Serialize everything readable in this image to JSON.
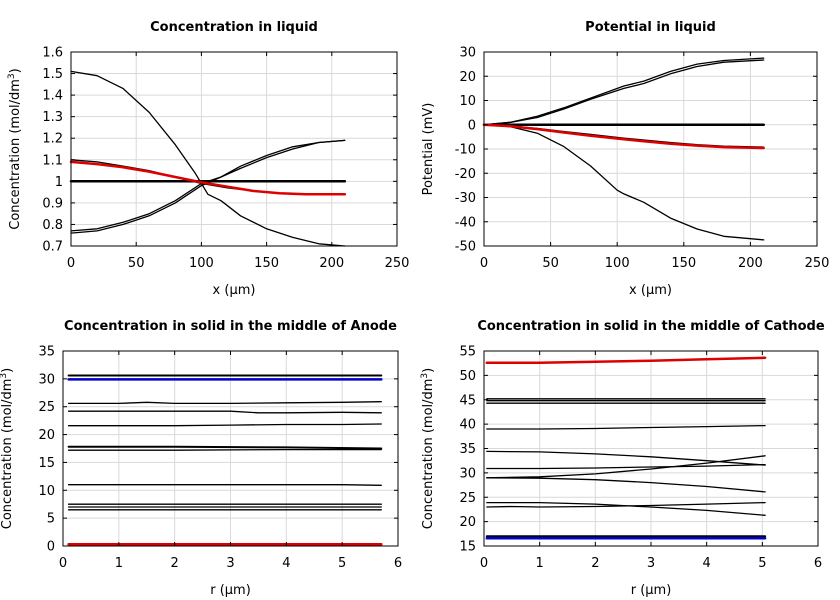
{
  "chart_data": [
    {
      "type": "line",
      "title": "Concentration in liquid",
      "xlabel": "x (µm)",
      "ylabel": "Concentration (mol/dm",
      "ylabel_sup": "3",
      "ylabel_end": ")",
      "xlim": [
        0,
        250
      ],
      "ylim": [
        0.7,
        1.6
      ],
      "xticks": [
        "0",
        "50",
        "100",
        "150",
        "200",
        "250"
      ],
      "yticks": [
        "0.7",
        "0.8",
        "0.9",
        "1",
        "1.1",
        "1.2",
        "1.3",
        "1.4",
        "1.5",
        "1.6"
      ],
      "grid": true,
      "series": [
        {
          "name": "initial",
          "color": "#000000",
          "width": 2.5,
          "x": [
            0,
            210
          ],
          "values": [
            1.0,
            1.0
          ]
        },
        {
          "name": "t1",
          "color": "#000000",
          "width": 1.3,
          "x": [
            0,
            20,
            40,
            60,
            80,
            95,
            105,
            115,
            130,
            150,
            170,
            190,
            210
          ],
          "values": [
            1.51,
            1.49,
            1.43,
            1.32,
            1.17,
            1.04,
            0.94,
            0.91,
            0.84,
            0.78,
            0.74,
            0.71,
            0.7
          ]
        },
        {
          "name": "t2",
          "color": "#000000",
          "width": 1.3,
          "x": [
            0,
            20,
            40,
            60,
            80,
            100,
            115,
            130,
            150,
            170,
            190,
            210
          ],
          "values": [
            0.77,
            0.78,
            0.81,
            0.85,
            0.91,
            0.99,
            1.02,
            1.07,
            1.12,
            1.16,
            1.18,
            1.19
          ]
        },
        {
          "name": "t3",
          "color": "#000000",
          "width": 1.3,
          "x": [
            0,
            20,
            40,
            60,
            80,
            100,
            115,
            130,
            150,
            170,
            190,
            210
          ],
          "values": [
            0.76,
            0.77,
            0.8,
            0.84,
            0.9,
            0.98,
            1.02,
            1.06,
            1.11,
            1.15,
            1.18,
            1.19
          ]
        },
        {
          "name": "t4",
          "color": "#000000",
          "width": 1.3,
          "x": [
            0,
            20,
            40,
            60,
            80,
            100,
            120,
            140,
            160,
            180,
            210
          ],
          "values": [
            1.1,
            1.09,
            1.07,
            1.05,
            1.02,
            0.99,
            0.97,
            0.955,
            0.945,
            0.94,
            0.94
          ]
        },
        {
          "name": "final",
          "color": "#dd0000",
          "width": 2.5,
          "x": [
            0,
            20,
            40,
            60,
            80,
            100,
            120,
            140,
            160,
            180,
            210
          ],
          "values": [
            1.09,
            1.08,
            1.065,
            1.045,
            1.02,
            0.995,
            0.975,
            0.955,
            0.945,
            0.94,
            0.94
          ]
        }
      ]
    },
    {
      "type": "line",
      "title": "Potential in liquid",
      "xlabel": "x (µm)",
      "ylabel": "Potential (mV)",
      "ylabel_sup": "",
      "ylabel_end": "",
      "xlim": [
        0,
        250
      ],
      "ylim": [
        -50,
        30
      ],
      "xticks": [
        "0",
        "50",
        "100",
        "150",
        "200",
        "250"
      ],
      "yticks": [
        "-50",
        "-40",
        "-30",
        "-20",
        "-10",
        "0",
        "10",
        "20",
        "30"
      ],
      "grid": true,
      "series": [
        {
          "name": "initial",
          "color": "#000000",
          "width": 2.5,
          "x": [
            0,
            210
          ],
          "values": [
            0,
            0
          ]
        },
        {
          "name": "t1",
          "color": "#000000",
          "width": 1.3,
          "x": [
            0,
            20,
            40,
            60,
            80,
            100,
            105,
            120,
            140,
            160,
            180,
            210
          ],
          "values": [
            0,
            -0.8,
            -3.5,
            -9,
            -17,
            -27,
            -28.5,
            -32,
            -38.5,
            -43,
            -46,
            -47.5
          ]
        },
        {
          "name": "t2",
          "color": "#000000",
          "width": 1.3,
          "x": [
            0,
            20,
            40,
            60,
            80,
            105,
            120,
            140,
            160,
            180,
            210
          ],
          "values": [
            0,
            1,
            3.5,
            7,
            11,
            16,
            18,
            22,
            25,
            26.5,
            27.5
          ]
        },
        {
          "name": "t3",
          "color": "#000000",
          "width": 1.3,
          "x": [
            0,
            20,
            40,
            60,
            80,
            105,
            120,
            140,
            160,
            180,
            210
          ],
          "values": [
            0,
            1,
            3,
            6.5,
            10.5,
            15,
            17,
            21,
            24,
            25.8,
            26.7
          ]
        },
        {
          "name": "t4",
          "color": "#000000",
          "width": 1.3,
          "x": [
            0,
            20,
            40,
            60,
            80,
            105,
            120,
            140,
            160,
            180,
            210
          ],
          "values": [
            0,
            -0.5,
            -1.5,
            -2.8,
            -4,
            -5.5,
            -6.3,
            -7.3,
            -8.2,
            -8.8,
            -9.2
          ]
        },
        {
          "name": "final",
          "color": "#dd0000",
          "width": 2.5,
          "x": [
            0,
            20,
            40,
            60,
            80,
            105,
            120,
            140,
            160,
            180,
            210
          ],
          "values": [
            0,
            -0.6,
            -1.8,
            -3.2,
            -4.5,
            -6,
            -6.8,
            -7.8,
            -8.6,
            -9.2,
            -9.6
          ]
        }
      ]
    },
    {
      "type": "line",
      "title": "Concentration in solid in the middle of Anode",
      "xlabel": "r (µm)",
      "ylabel": "Concentration (mol/dm",
      "ylabel_sup": "3",
      "ylabel_end": ")",
      "xlim": [
        0,
        6
      ],
      "ylim": [
        0,
        35
      ],
      "xticks": [
        "0",
        "1",
        "2",
        "3",
        "4",
        "5",
        "6"
      ],
      "yticks": [
        "0",
        "5",
        "10",
        "15",
        "20",
        "25",
        "30",
        "35"
      ],
      "grid": true,
      "series": [
        {
          "name": "c30a",
          "color": "#000000",
          "width": 2,
          "x": [
            0.1,
            5.7
          ],
          "values": [
            30.6,
            30.6
          ]
        },
        {
          "name": "initial",
          "color": "#0000cc",
          "width": 2.5,
          "x": [
            0.1,
            5.7
          ],
          "values": [
            29.9,
            29.9
          ]
        },
        {
          "name": "c25",
          "color": "#000000",
          "width": 1.3,
          "x": [
            0.1,
            1.0,
            1.5,
            2.0,
            3.0,
            4.0,
            5.0,
            5.7
          ],
          "values": [
            25.6,
            25.6,
            25.8,
            25.6,
            25.6,
            25.7,
            25.8,
            25.9
          ]
        },
        {
          "name": "c24",
          "color": "#000000",
          "width": 1.3,
          "x": [
            0.1,
            1.0,
            2.0,
            3.0,
            3.5,
            4.0,
            5.0,
            5.7
          ],
          "values": [
            24.2,
            24.2,
            24.2,
            24.2,
            23.9,
            23.9,
            24.0,
            23.9
          ]
        },
        {
          "name": "c21",
          "color": "#000000",
          "width": 1.3,
          "x": [
            0.1,
            1.0,
            2.0,
            3.0,
            4.0,
            5.0,
            5.7
          ],
          "values": [
            21.6,
            21.6,
            21.6,
            21.7,
            21.8,
            21.8,
            21.9
          ]
        },
        {
          "name": "c17a",
          "color": "#000000",
          "width": 2,
          "x": [
            0.1,
            2.0,
            4.0,
            5.7
          ],
          "values": [
            17.8,
            17.8,
            17.7,
            17.5
          ]
        },
        {
          "name": "c17b",
          "color": "#000000",
          "width": 1.3,
          "x": [
            0.1,
            2.0,
            4.0,
            5.7
          ],
          "values": [
            17.2,
            17.2,
            17.3,
            17.3
          ]
        },
        {
          "name": "c11",
          "color": "#000000",
          "width": 1.3,
          "x": [
            0.1,
            2.0,
            4.0,
            5.0,
            5.7
          ],
          "values": [
            11.0,
            11.0,
            11.0,
            11.0,
            10.9
          ]
        },
        {
          "name": "c7a",
          "color": "#000000",
          "width": 1.3,
          "x": [
            0.1,
            5.7
          ],
          "values": [
            7.5,
            7.5
          ]
        },
        {
          "name": "c7b",
          "color": "#000000",
          "width": 1.3,
          "x": [
            0.1,
            5.7
          ],
          "values": [
            7.0,
            7.0
          ]
        },
        {
          "name": "c6",
          "color": "#000000",
          "width": 1.3,
          "x": [
            0.1,
            5.7
          ],
          "values": [
            6.5,
            6.5
          ]
        },
        {
          "name": "final",
          "color": "#dd0000",
          "width": 2.5,
          "x": [
            0.1,
            5.7
          ],
          "values": [
            0.3,
            0.3
          ]
        }
      ]
    },
    {
      "type": "line",
      "title": "Concentration in solid in the middle of Cathode",
      "xlabel": "r (µm)",
      "ylabel": "Concentration (mol/dm",
      "ylabel_sup": "3",
      "ylabel_end": ")",
      "xlim": [
        0,
        6
      ],
      "ylim": [
        15,
        55
      ],
      "xticks": [
        "0",
        "1",
        "2",
        "3",
        "4",
        "5",
        "6"
      ],
      "yticks": [
        "15",
        "20",
        "25",
        "30",
        "35",
        "40",
        "45",
        "50",
        "55"
      ],
      "grid": true,
      "series": [
        {
          "name": "final",
          "color": "#dd0000",
          "width": 2.5,
          "x": [
            0.05,
            1,
            2,
            3,
            4,
            5.05
          ],
          "values": [
            52.6,
            52.6,
            52.8,
            53.0,
            53.3,
            53.6
          ]
        },
        {
          "name": "c45a",
          "color": "#000000",
          "width": 1.3,
          "x": [
            0.05,
            5.05
          ],
          "values": [
            45.2,
            45.2
          ]
        },
        {
          "name": "c45b",
          "color": "#000000",
          "width": 1.3,
          "x": [
            0.05,
            5.05
          ],
          "values": [
            44.8,
            44.8
          ]
        },
        {
          "name": "c44",
          "color": "#000000",
          "width": 1.3,
          "x": [
            0.05,
            5.05
          ],
          "values": [
            44.3,
            44.3
          ]
        },
        {
          "name": "c39",
          "color": "#000000",
          "width": 1.3,
          "x": [
            0.05,
            1,
            2,
            3,
            4,
            5.05
          ],
          "values": [
            39.0,
            39.0,
            39.1,
            39.3,
            39.5,
            39.7
          ]
        },
        {
          "name": "c34",
          "color": "#000000",
          "width": 1.3,
          "x": [
            0.05,
            1,
            2,
            3,
            4,
            5.05
          ],
          "values": [
            34.4,
            34.3,
            33.9,
            33.3,
            32.5,
            31.6
          ]
        },
        {
          "name": "c31",
          "color": "#000000",
          "width": 1.3,
          "x": [
            0.05,
            1,
            2,
            3,
            4,
            5.05
          ],
          "values": [
            30.9,
            30.9,
            31.0,
            31.2,
            31.4,
            31.7
          ]
        },
        {
          "name": "c29a",
          "color": "#000000",
          "width": 1.3,
          "x": [
            0.05,
            1,
            2,
            3,
            4,
            5.05
          ],
          "values": [
            29.0,
            29.2,
            29.8,
            30.8,
            32.0,
            33.5
          ]
        },
        {
          "name": "c29b",
          "color": "#000000",
          "width": 1.3,
          "x": [
            0.05,
            1,
            2,
            3,
            4,
            5.05
          ],
          "values": [
            29.0,
            28.9,
            28.6,
            28.0,
            27.2,
            26.1
          ]
        },
        {
          "name": "c24",
          "color": "#000000",
          "width": 1.3,
          "x": [
            0.05,
            1,
            2,
            3,
            4,
            5.05
          ],
          "values": [
            23.9,
            23.9,
            23.6,
            23.0,
            22.3,
            21.3
          ]
        },
        {
          "name": "c23",
          "color": "#000000",
          "width": 1.3,
          "x": [
            0.05,
            0.5,
            1,
            2,
            3,
            4,
            5.05
          ],
          "values": [
            23.0,
            23.1,
            23.0,
            23.1,
            23.3,
            23.6,
            23.9
          ]
        },
        {
          "name": "c17",
          "color": "#000000",
          "width": 2,
          "x": [
            0.05,
            5.05
          ],
          "values": [
            17.0,
            17.0
          ]
        },
        {
          "name": "initial",
          "color": "#0000cc",
          "width": 2.5,
          "x": [
            0.05,
            5.05
          ],
          "values": [
            16.6,
            16.6
          ]
        }
      ]
    }
  ]
}
